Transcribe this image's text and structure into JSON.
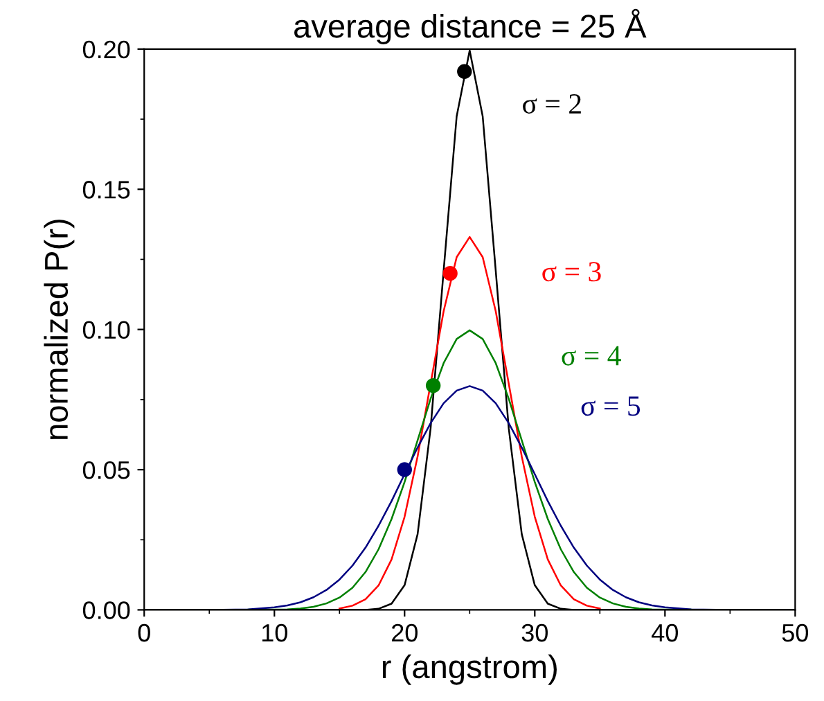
{
  "chart_data": {
    "type": "line",
    "title": "average distance = 25 Å",
    "xlabel": "r (angstrom)",
    "ylabel": "normalized P(r)",
    "x": [
      0,
      5,
      8,
      10,
      11,
      12,
      13,
      14,
      15,
      16,
      17,
      18,
      19,
      20,
      21,
      22,
      23,
      24,
      25,
      26,
      27,
      28,
      29,
      30,
      31,
      32,
      33,
      34,
      35,
      36,
      37,
      38,
      39,
      40,
      42,
      45,
      50
    ],
    "series": [
      {
        "name": "σ = 2",
        "color": "#000000",
        "values": [
          0,
          0,
          0,
          0,
          0,
          0,
          0,
          0,
          0,
          0,
          0,
          0.0004,
          0.0022,
          0.0088,
          0.027,
          0.0648,
          0.121,
          0.176,
          0.1995,
          0.176,
          0.121,
          0.0648,
          0.027,
          0.0088,
          0.0022,
          0.0004,
          0,
          0,
          0,
          0,
          0,
          0,
          0,
          0,
          0,
          0,
          0
        ]
      },
      {
        "name": "σ = 3",
        "color": "#ff0000",
        "values": [
          null,
          null,
          null,
          null,
          null,
          null,
          null,
          null,
          0.0005,
          0.0015,
          0.0038,
          0.0087,
          0.018,
          0.0332,
          0.0547,
          0.0807,
          0.1065,
          0.1258,
          0.133,
          0.1258,
          0.1065,
          0.0807,
          0.0547,
          0.0332,
          0.018,
          0.0087,
          0.0038,
          0.0015,
          0.0005,
          null,
          null,
          null,
          null,
          null,
          null,
          null,
          null
        ]
      },
      {
        "name": "σ = 4",
        "color": "#008000",
        "values": [
          null,
          null,
          0.0001,
          0.0001,
          0.0002,
          0.0005,
          0.0011,
          0.0023,
          0.0044,
          0.0079,
          0.0135,
          0.0216,
          0.0324,
          0.0456,
          0.0605,
          0.0753,
          0.088,
          0.0966,
          0.0997,
          0.0966,
          0.088,
          0.0753,
          0.0605,
          0.0456,
          0.0324,
          0.0216,
          0.0135,
          0.0079,
          0.0044,
          0.0023,
          0.0011,
          0.0005,
          0.0002,
          0.0001,
          0.0001,
          null,
          null
        ]
      },
      {
        "name": "σ = 5",
        "color": "#000080",
        "values": [
          0,
          0,
          0.0002,
          0.0009,
          0.0016,
          0.0027,
          0.0045,
          0.0071,
          0.0108,
          0.0158,
          0.0222,
          0.03,
          0.0388,
          0.0484,
          0.0579,
          0.0666,
          0.0737,
          0.0782,
          0.0798,
          0.0782,
          0.0737,
          0.0666,
          0.0579,
          0.0484,
          0.0388,
          0.03,
          0.0222,
          0.0158,
          0.0108,
          0.0071,
          0.0045,
          0.0027,
          0.0016,
          0.0009,
          0.0002,
          0,
          0
        ]
      },
      {
        "type": "scatter",
        "x": [
          24.6,
          23.5,
          22.2,
          20
        ],
        "values": [
          0.192,
          0.12,
          0.08,
          0.05
        ],
        "colors": [
          "#000000",
          "#ff0000",
          "#008000",
          "#000080"
        ]
      }
    ],
    "xlim": [
      0,
      50
    ],
    "xticks": [
      0,
      10,
      20,
      30,
      40,
      50
    ],
    "ylim": [
      0,
      0.2
    ],
    "yticks": [
      {
        "value": 0,
        "label": "0.00"
      },
      {
        "value": 0.05,
        "label": "0.05"
      },
      {
        "value": 0.1,
        "label": "0.10"
      },
      {
        "value": 0.15,
        "label": "0.15"
      },
      {
        "value": 0.2,
        "label": "0.20"
      }
    ],
    "grid": false,
    "legend": false
  }
}
